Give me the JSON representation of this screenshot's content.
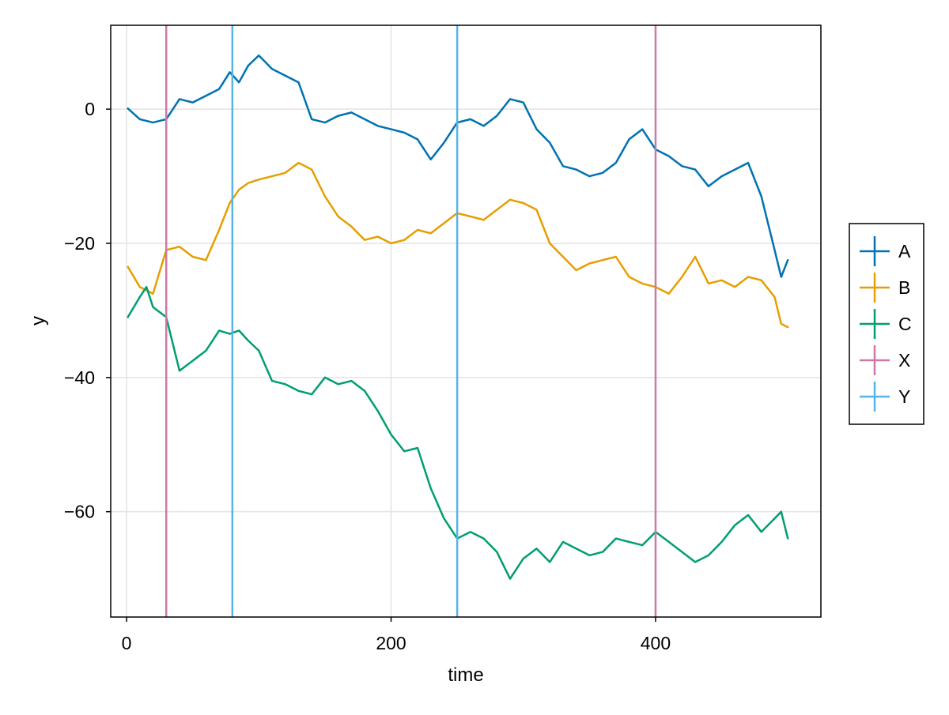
{
  "chart_data": {
    "type": "line",
    "xlabel": "time",
    "ylabel": "y",
    "xlim": [
      -12,
      525
    ],
    "ylim": [
      -75.7,
      12.5
    ],
    "xticks": [
      0,
      200,
      400
    ],
    "yticks": [
      0,
      -20,
      -40,
      -60
    ],
    "grid": true,
    "legend_position": "right",
    "series": [
      {
        "name": "A",
        "color": "#0072B2",
        "x": [
          1,
          10,
          20,
          30,
          40,
          50,
          60,
          70,
          78,
          85,
          92,
          100,
          110,
          120,
          130,
          140,
          150,
          160,
          170,
          180,
          190,
          200,
          210,
          220,
          230,
          240,
          250,
          260,
          270,
          280,
          290,
          300,
          310,
          320,
          330,
          340,
          350,
          360,
          370,
          380,
          390,
          400,
          410,
          420,
          430,
          440,
          450,
          460,
          470,
          480,
          490,
          495,
          500
        ],
        "y": [
          0.1,
          -1.5,
          -2.0,
          -1.5,
          1.5,
          1.0,
          2.0,
          3.0,
          5.5,
          4.0,
          6.5,
          8.0,
          6.0,
          5.0,
          4.0,
          -1.5,
          -2.0,
          -1.0,
          -0.5,
          -1.5,
          -2.5,
          -3.0,
          -3.5,
          -4.5,
          -7.5,
          -5.0,
          -2.0,
          -1.5,
          -2.5,
          -1.0,
          1.5,
          1.0,
          -3.0,
          -5.0,
          -8.5,
          -9.0,
          -10.0,
          -9.5,
          -8.0,
          -4.5,
          -3.0,
          -6.0,
          -7.0,
          -8.5,
          -9.0,
          -11.5,
          -10.0,
          -9.0,
          -8.0,
          -13.0,
          -21.0,
          -25.0,
          -22.5
        ]
      },
      {
        "name": "B",
        "color": "#E69F00",
        "x": [
          1,
          10,
          20,
          30,
          40,
          50,
          60,
          70,
          78,
          85,
          92,
          100,
          110,
          120,
          130,
          140,
          150,
          160,
          170,
          180,
          190,
          200,
          210,
          220,
          230,
          240,
          250,
          260,
          270,
          280,
          290,
          300,
          310,
          320,
          330,
          340,
          350,
          360,
          370,
          380,
          390,
          400,
          410,
          420,
          430,
          440,
          450,
          460,
          470,
          480,
          490,
          495,
          500
        ],
        "y": [
          -23.5,
          -26.5,
          -27.5,
          -21.0,
          -20.5,
          -22.0,
          -22.5,
          -18.0,
          -14.0,
          -12.0,
          -11.0,
          -10.5,
          -10.0,
          -9.5,
          -8.0,
          -9.0,
          -13.0,
          -16.0,
          -17.5,
          -19.5,
          -19.0,
          -20.0,
          -19.5,
          -18.0,
          -18.5,
          -17.0,
          -15.5,
          -16.0,
          -16.5,
          -15.0,
          -13.5,
          -14.0,
          -15.0,
          -20.0,
          -22.0,
          -24.0,
          -23.0,
          -22.5,
          -22.0,
          -25.0,
          -26.0,
          -26.5,
          -27.5,
          -25.0,
          -22.0,
          -26.0,
          -25.5,
          -26.5,
          -25.0,
          -25.5,
          -28.0,
          -32.0,
          -32.5
        ]
      },
      {
        "name": "C",
        "color": "#009E73",
        "x": [
          1,
          10,
          15,
          20,
          30,
          40,
          50,
          60,
          70,
          78,
          85,
          92,
          100,
          110,
          120,
          130,
          140,
          150,
          160,
          170,
          180,
          190,
          200,
          210,
          220,
          230,
          240,
          250,
          260,
          270,
          280,
          290,
          300,
          310,
          320,
          330,
          340,
          350,
          360,
          370,
          380,
          390,
          400,
          410,
          420,
          430,
          440,
          450,
          460,
          470,
          480,
          490,
          495,
          500
        ],
        "y": [
          -31.0,
          -28.0,
          -26.5,
          -29.5,
          -31.0,
          -39.0,
          -37.5,
          -36.0,
          -33.0,
          -33.5,
          -33.0,
          -34.5,
          -36.0,
          -40.5,
          -41.0,
          -42.0,
          -42.5,
          -40.0,
          -41.0,
          -40.5,
          -42.0,
          -45.0,
          -48.5,
          -51.0,
          -50.5,
          -56.5,
          -61.0,
          -64.0,
          -63.0,
          -64.0,
          -66.0,
          -70.0,
          -67.0,
          -65.5,
          -67.5,
          -64.5,
          -65.5,
          -66.5,
          -66.0,
          -64.0,
          -64.5,
          -65.0,
          -63.0,
          -64.5,
          -66.0,
          -67.5,
          -66.5,
          -64.5,
          -62.0,
          -60.5,
          -63.0,
          -61.0,
          -60.0,
          -64.0
        ]
      },
      {
        "name": "X",
        "color": "#CC79A7",
        "vlines": [
          30,
          400
        ]
      },
      {
        "name": "Y",
        "color": "#56B4E9",
        "vlines": [
          80,
          250
        ]
      }
    ]
  }
}
